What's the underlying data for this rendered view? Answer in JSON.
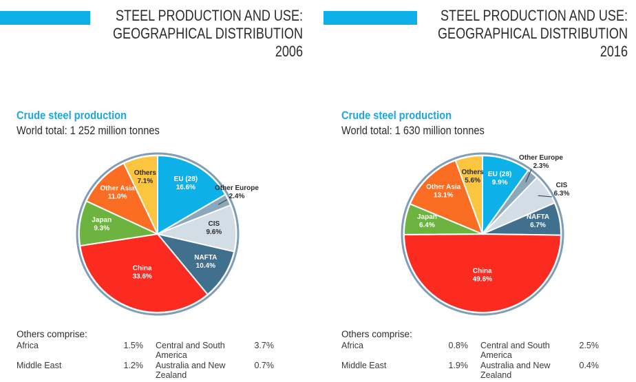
{
  "colors": {
    "accent": "#0db0e8",
    "subtitle": "#1ea7dc",
    "border": "#7f9db5",
    "EU (28)": "#0eb0e8",
    "Other Europe": "#8aa7bb",
    "CIS": "#d3dde5",
    "NAFTA": "#416f8e",
    "China": "#fb2b22",
    "Japan": "#6cb33f",
    "Other Asia": "#fb6d22",
    "Others": "#fcc540"
  },
  "panels": [
    {
      "title_lines": [
        "STEEL PRODUCTION AND USE:",
        "GEOGRAPHICAL DISTRIBUTION",
        "2006"
      ],
      "subtitle": "Crude steel production",
      "world_total": "World total: 1 252 million tonnes",
      "others_title": "Others comprise:",
      "others": [
        {
          "name": "Africa",
          "value": "1.5%"
        },
        {
          "name": "Central and South America",
          "value": "3.7%"
        },
        {
          "name": "Middle East",
          "value": "1.2%"
        },
        {
          "name": "Australia and New Zealand",
          "value": "0.7%"
        }
      ]
    },
    {
      "title_lines": [
        "STEEL PRODUCTION AND USE:",
        "GEOGRAPHICAL DISTRIBUTION",
        "2016"
      ],
      "subtitle": "Crude steel production",
      "world_total": "World total: 1 630 million tonnes",
      "others_title": "Others comprise:",
      "others": [
        {
          "name": "Africa",
          "value": "0.8%"
        },
        {
          "name": "Central and South America",
          "value": "2.5%"
        },
        {
          "name": "Middle East",
          "value": "1.9%"
        },
        {
          "name": "Australia and New Zealand",
          "value": "0.4%"
        }
      ]
    }
  ],
  "chart_data": [
    {
      "type": "pie",
      "title": "Crude steel production 2006",
      "subtitle": "World total: 1 252 million tonnes",
      "unit": "%",
      "categories": [
        "EU (28)",
        "Other Europe",
        "CIS",
        "NAFTA",
        "China",
        "Japan",
        "Other Asia",
        "Others"
      ],
      "values": [
        16.6,
        2.4,
        9.6,
        10.4,
        33.6,
        9.3,
        11.0,
        7.1
      ],
      "labels": [
        "16.6%",
        "2.4%",
        "9.6%",
        "10.4%",
        "33.6%",
        "9.3%",
        "11.0%",
        "7.1%"
      ],
      "start": "12 o'clock, clockwise"
    },
    {
      "type": "pie",
      "title": "Crude steel production 2016",
      "subtitle": "World total: 1 630 million tonnes",
      "unit": "%",
      "categories": [
        "EU (28)",
        "Other Europe",
        "CIS",
        "NAFTA",
        "China",
        "Japan",
        "Other Asia",
        "Others"
      ],
      "values": [
        9.9,
        2.3,
        6.3,
        6.7,
        49.6,
        6.4,
        13.1,
        5.6
      ],
      "labels": [
        "9.9%",
        "2.3%",
        "6.3%",
        "6.7%",
        "49.6%",
        "6.4%",
        "13.1%",
        "5.6%"
      ],
      "start": "12 o'clock, clockwise"
    }
  ]
}
